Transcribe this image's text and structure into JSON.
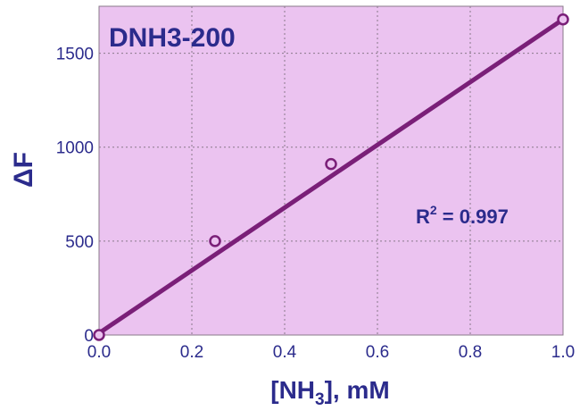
{
  "chart_data": {
    "type": "scatter",
    "title": "DNH3-200",
    "xlabel_prefix": "[NH",
    "xlabel_sub": "3",
    "xlabel_suffix": "], mM",
    "ylabel": "ΔF",
    "annotation_prefix": "R",
    "annotation_sup": "2",
    "annotation_suffix": " = 0.997",
    "xlim": [
      0,
      1.0
    ],
    "ylim": [
      0,
      1750
    ],
    "xticks": [
      "0.0",
      "0.2",
      "0.4",
      "0.6",
      "0.8",
      "1.0"
    ],
    "xtick_values": [
      0,
      0.2,
      0.4,
      0.6,
      0.8,
      1.0
    ],
    "yticks": [
      "0",
      "500",
      "1000",
      "1500"
    ],
    "ytick_values": [
      0,
      500,
      1000,
      1500
    ],
    "grid": true,
    "series": [
      {
        "type": "scatter",
        "x": [
          0,
          0.25,
          0.5,
          1.0
        ],
        "y": [
          0,
          500,
          910,
          1680
        ]
      },
      {
        "type": "line",
        "x": [
          0,
          1.0
        ],
        "y": [
          10,
          1680
        ]
      }
    ],
    "colors": {
      "plot_background": "#ebc3f0",
      "series": "#7a1f78",
      "text": "#2b2b8c"
    }
  }
}
